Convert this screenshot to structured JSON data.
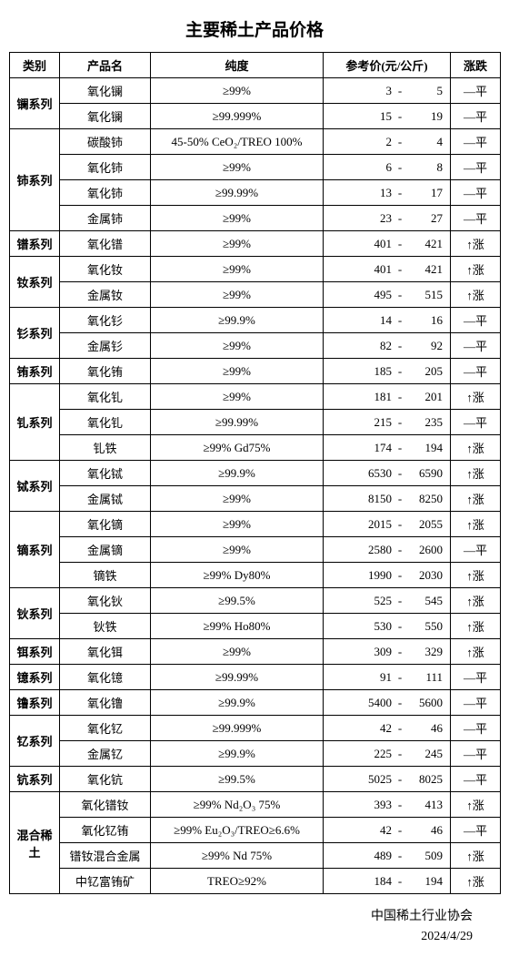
{
  "title": "主要稀土产品价格",
  "headers": {
    "category": "类别",
    "name": "产品名",
    "purity": "纯度",
    "price": "参考价(元/公斤)",
    "trend": "涨跌"
  },
  "trend_labels": {
    "flat": "—平",
    "up": "↑涨"
  },
  "categories": [
    {
      "name": "镧系列",
      "products": [
        {
          "name": "氧化镧",
          "purity": "≥99%",
          "low": "3",
          "high": "5",
          "trend": "flat"
        },
        {
          "name": "氧化镧",
          "purity": "≥99.999%",
          "low": "15",
          "high": "19",
          "trend": "flat"
        }
      ]
    },
    {
      "name": "铈系列",
      "products": [
        {
          "name": "碳酸铈",
          "purity": "45-50% CeO₂/TREO 100%",
          "low": "2",
          "high": "4",
          "trend": "flat"
        },
        {
          "name": "氧化铈",
          "purity": "≥99%",
          "low": "6",
          "high": "8",
          "trend": "flat"
        },
        {
          "name": "氧化铈",
          "purity": "≥99.99%",
          "low": "13",
          "high": "17",
          "trend": "flat"
        },
        {
          "name": "金属铈",
          "purity": "≥99%",
          "low": "23",
          "high": "27",
          "trend": "flat"
        }
      ]
    },
    {
      "name": "镨系列",
      "products": [
        {
          "name": "氧化镨",
          "purity": "≥99%",
          "low": "401",
          "high": "421",
          "trend": "up"
        }
      ]
    },
    {
      "name": "钕系列",
      "products": [
        {
          "name": "氧化钕",
          "purity": "≥99%",
          "low": "401",
          "high": "421",
          "trend": "up"
        },
        {
          "name": "金属钕",
          "purity": "≥99%",
          "low": "495",
          "high": "515",
          "trend": "up"
        }
      ]
    },
    {
      "name": "钐系列",
      "products": [
        {
          "name": "氧化钐",
          "purity": "≥99.9%",
          "low": "14",
          "high": "16",
          "trend": "flat"
        },
        {
          "name": "金属钐",
          "purity": "≥99%",
          "low": "82",
          "high": "92",
          "trend": "flat"
        }
      ]
    },
    {
      "name": "铕系列",
      "products": [
        {
          "name": "氧化铕",
          "purity": "≥99%",
          "low": "185",
          "high": "205",
          "trend": "flat"
        }
      ]
    },
    {
      "name": "钆系列",
      "products": [
        {
          "name": "氧化钆",
          "purity": "≥99%",
          "low": "181",
          "high": "201",
          "trend": "up"
        },
        {
          "name": "氧化钆",
          "purity": "≥99.99%",
          "low": "215",
          "high": "235",
          "trend": "flat"
        },
        {
          "name": "钆铁",
          "purity": "≥99% Gd75%",
          "low": "174",
          "high": "194",
          "trend": "up"
        }
      ]
    },
    {
      "name": "铽系列",
      "products": [
        {
          "name": "氧化铽",
          "purity": "≥99.9%",
          "low": "6530",
          "high": "6590",
          "trend": "up"
        },
        {
          "name": "金属铽",
          "purity": "≥99%",
          "low": "8150",
          "high": "8250",
          "trend": "up"
        }
      ]
    },
    {
      "name": "镝系列",
      "products": [
        {
          "name": "氧化镝",
          "purity": "≥99%",
          "low": "2015",
          "high": "2055",
          "trend": "up"
        },
        {
          "name": "金属镝",
          "purity": "≥99%",
          "low": "2580",
          "high": "2600",
          "trend": "flat"
        },
        {
          "name": "镝铁",
          "purity": "≥99% Dy80%",
          "low": "1990",
          "high": "2030",
          "trend": "up"
        }
      ]
    },
    {
      "name": "钬系列",
      "products": [
        {
          "name": "氧化钬",
          "purity": "≥99.5%",
          "low": "525",
          "high": "545",
          "trend": "up"
        },
        {
          "name": "钬铁",
          "purity": "≥99% Ho80%",
          "low": "530",
          "high": "550",
          "trend": "up"
        }
      ]
    },
    {
      "name": "铒系列",
      "products": [
        {
          "name": "氧化铒",
          "purity": "≥99%",
          "low": "309",
          "high": "329",
          "trend": "up"
        }
      ]
    },
    {
      "name": "镱系列",
      "products": [
        {
          "name": "氧化镱",
          "purity": "≥99.99%",
          "low": "91",
          "high": "111",
          "trend": "flat"
        }
      ]
    },
    {
      "name": "镥系列",
      "products": [
        {
          "name": "氧化镥",
          "purity": "≥99.9%",
          "low": "5400",
          "high": "5600",
          "trend": "flat"
        }
      ]
    },
    {
      "name": "钇系列",
      "products": [
        {
          "name": "氧化钇",
          "purity": "≥99.999%",
          "low": "42",
          "high": "46",
          "trend": "flat"
        },
        {
          "name": "金属钇",
          "purity": "≥99.9%",
          "low": "225",
          "high": "245",
          "trend": "flat"
        }
      ]
    },
    {
      "name": "钪系列",
      "products": [
        {
          "name": "氧化钪",
          "purity": "≥99.5%",
          "low": "5025",
          "high": "8025",
          "trend": "flat"
        }
      ]
    },
    {
      "name": "混合稀土",
      "products": [
        {
          "name": "氧化镨钕",
          "purity": "≥99%  Nd₂O₃  75%",
          "low": "393",
          "high": "413",
          "trend": "up"
        },
        {
          "name": "氧化钇铕",
          "purity": "≥99% Eu₂O₃/TREO≥6.6%",
          "low": "42",
          "high": "46",
          "trend": "flat"
        },
        {
          "name": "镨钕混合金属",
          "purity": "≥99% Nd 75%",
          "low": "489",
          "high": "509",
          "trend": "up"
        },
        {
          "name": "中钇富铕矿",
          "purity": "TREO≥92%",
          "low": "184",
          "high": "194",
          "trend": "up"
        }
      ]
    }
  ],
  "footer": {
    "org": "中国稀土行业协会",
    "date": "2024/4/29"
  }
}
